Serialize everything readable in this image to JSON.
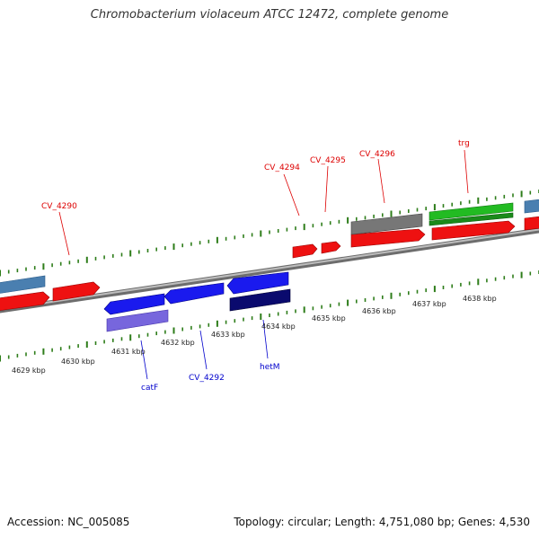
{
  "title": "Chromobacterium violaceum ATCC 12472, complete genome",
  "footer": {
    "accession": "Accession: NC_005085",
    "summary": "Topology: circular; Length: 4,751,080 bp; Genes: 4,530"
  },
  "colors": {
    "forward_gene": "#ee1111",
    "reverse_gene": "#1a1aee",
    "grey_feature": "#777777",
    "green_feature": "#22bb22",
    "steel_feature": "#4a7fb0",
    "navy_feature": "#0a0a6e",
    "purple_feature": "#7766dd",
    "tick": "#2e7d1a",
    "backbone": "#8a8a8a"
  },
  "scale": {
    "labels": [
      "4629 kbp",
      "4630 kbp",
      "4631 kbp",
      "4632 kbp",
      "4633 kbp",
      "4634 kbp",
      "4635 kbp",
      "4636 kbp",
      "4637 kbp",
      "4638 kbp"
    ]
  },
  "labels": {
    "forward": [
      "CV_4290",
      "CV_4294",
      "CV_4295",
      "CV_4296",
      "trg"
    ],
    "reverse": [
      "catF",
      "CV_4292",
      "hetM"
    ]
  }
}
